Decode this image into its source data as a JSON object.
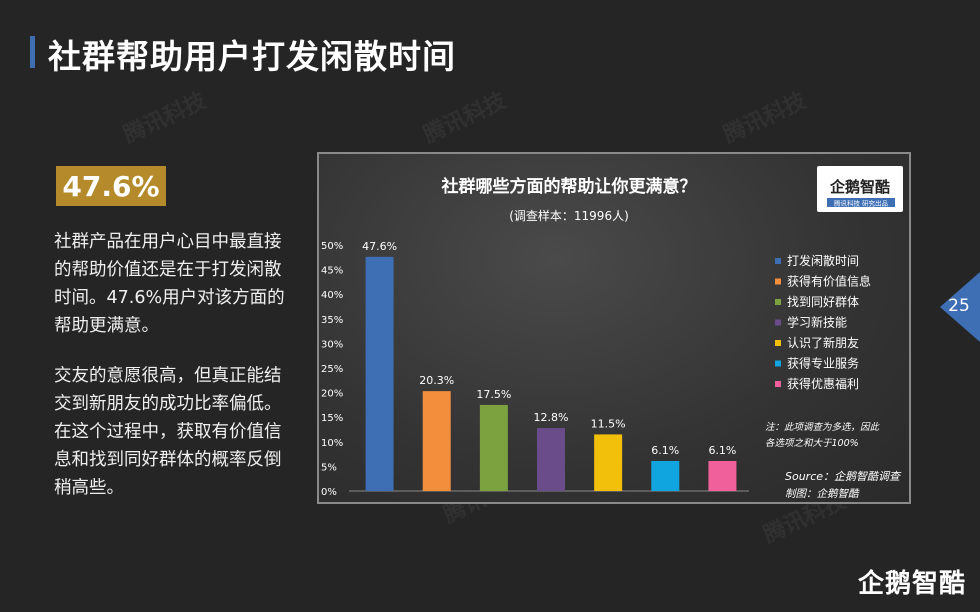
{
  "page": {
    "title": "社群帮助用户打发闲散时间",
    "page_number": "25",
    "brand": "企鹅智酷",
    "watermark": "腾讯科技"
  },
  "left": {
    "stat": "47.6%",
    "paragraph1": "社群产品在用户心目中最直接的帮助价值还是在于打发闲散时间。47.6%用户对该方面的帮助更满意。",
    "paragraph2": "交友的意愿很高，但真正能结交到新朋友的成功比率偏低。在这个过程中，获取有价值信息和找到同好群体的概率反倒稍高些。"
  },
  "chart_data": {
    "type": "bar",
    "title": "社群哪些方面的帮助让你更满意？",
    "subtitle": "(调查样本：11996人)",
    "categories": [
      "打发闲散时间",
      "获得有价值信息",
      "找到同好群体",
      "学习新技能",
      "认识了新朋友",
      "获得专业服务",
      "获得优惠福利"
    ],
    "values": [
      47.6,
      20.3,
      17.5,
      12.8,
      11.5,
      6.1,
      6.1
    ],
    "data_labels": [
      "47.6%",
      "20.3%",
      "17.5%",
      "12.8%",
      "11.5%",
      "6.1%",
      "6.1%"
    ],
    "colors": [
      "#3e6fb5",
      "#f28e3c",
      "#7ba23f",
      "#6b4c8a",
      "#f2bf0a",
      "#10a5de",
      "#f0609a"
    ],
    "ylim": [
      0,
      50
    ],
    "ytick_labels": [
      "0%",
      "5%",
      "10%",
      "15%",
      "20%",
      "25%",
      "30%",
      "35%",
      "40%",
      "45%",
      "50%"
    ],
    "legend": "right",
    "note_line1": "注：此项调查为多选，因此",
    "note_line2": "各选项之和大于100%",
    "source": "Source：企鹅智酷调查",
    "producer": "制图：企鹅智酷",
    "logo_text": "企鹅智酷",
    "logo_sub": "腾讯科技  研究出品"
  }
}
